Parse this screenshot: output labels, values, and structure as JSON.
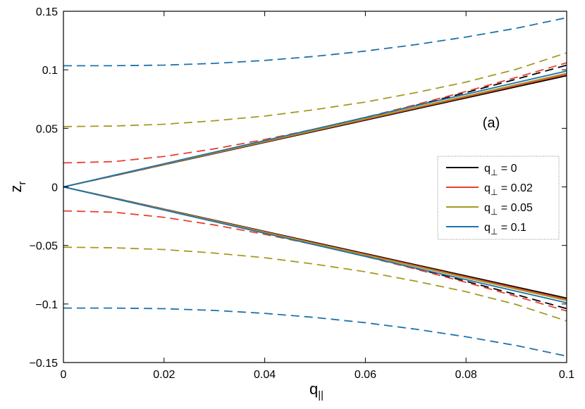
{
  "chart_data": {
    "type": "line",
    "xlabel": "q",
    "xlabel_sub": "||",
    "ylabel": "z",
    "ylabel_sub": "r",
    "xlim": [
      0,
      0.1
    ],
    "ylim": [
      -0.15,
      0.15
    ],
    "x_ticks": [
      0,
      0.02,
      0.04,
      0.06,
      0.08,
      0.1
    ],
    "x_tick_labels": [
      "0",
      "0.02",
      "0.04",
      "0.06",
      "0.08",
      "0.1"
    ],
    "y_ticks": [
      -0.15,
      -0.1,
      -0.05,
      0,
      0.05,
      0.1,
      0.15
    ],
    "y_tick_labels": [
      "−0.15",
      "−0.1",
      "−0.05",
      "0",
      "0.05",
      "0.1",
      "0.15"
    ],
    "grid": false,
    "legend_position": "right",
    "annotation": "(a)",
    "x": [
      0,
      0.01,
      0.02,
      0.03,
      0.04,
      0.05,
      0.06,
      0.07,
      0.08,
      0.09,
      0.1
    ],
    "series": [
      {
        "name": "q⊥ = 0",
        "legend_label": "q",
        "legend_sub": "⊥",
        "legend_value": " = 0",
        "color": "#000000",
        "solid_upper": [
          0,
          0.0095,
          0.019,
          0.0285,
          0.038,
          0.0475,
          0.057,
          0.0665,
          0.076,
          0.0855,
          0.095
        ],
        "solid_lower": [
          0,
          -0.0095,
          -0.019,
          -0.0285,
          -0.038,
          -0.0475,
          -0.057,
          -0.0665,
          -0.076,
          -0.0855,
          -0.095
        ],
        "dashed_upper": [
          0,
          0.0095,
          0.019,
          0.0287,
          0.0386,
          0.0487,
          0.059,
          0.0696,
          0.0806,
          0.092,
          0.104
        ],
        "dashed_lower": [
          0,
          -0.0095,
          -0.019,
          -0.0287,
          -0.0386,
          -0.0487,
          -0.059,
          -0.0696,
          -0.0806,
          -0.092,
          -0.104
        ]
      },
      {
        "name": "q⊥ = 0.02",
        "legend_label": "q",
        "legend_sub": "⊥",
        "legend_value": " = 0.02",
        "color": "#e8412c",
        "solid_upper": [
          0,
          0.0096,
          0.0192,
          0.0288,
          0.0384,
          0.048,
          0.0576,
          0.0672,
          0.0768,
          0.0864,
          0.096
        ],
        "solid_lower": [
          0,
          -0.0096,
          -0.0192,
          -0.0288,
          -0.0384,
          -0.048,
          -0.0576,
          -0.0672,
          -0.0768,
          -0.0864,
          -0.096
        ],
        "dashed_upper": [
          0.0205,
          0.0216,
          0.026,
          0.0325,
          0.0405,
          0.0494,
          0.0594,
          0.0702,
          0.0815,
          0.0935,
          0.106
        ],
        "dashed_lower": [
          -0.0205,
          -0.0216,
          -0.026,
          -0.0325,
          -0.0405,
          -0.0494,
          -0.0594,
          -0.0702,
          -0.0815,
          -0.0935,
          -0.106
        ]
      },
      {
        "name": "q⊥ = 0.05",
        "legend_label": "q",
        "legend_sub": "⊥",
        "legend_value": " = 0.05",
        "color": "#a59a21",
        "solid_upper": [
          0,
          0.0097,
          0.0194,
          0.0291,
          0.0388,
          0.0485,
          0.0582,
          0.0679,
          0.0776,
          0.0873,
          0.097
        ],
        "solid_lower": [
          0,
          -0.0097,
          -0.0194,
          -0.0291,
          -0.0388,
          -0.0485,
          -0.0582,
          -0.0679,
          -0.0776,
          -0.0873,
          -0.097
        ],
        "dashed_upper": [
          0.0515,
          0.052,
          0.0535,
          0.0565,
          0.0605,
          0.066,
          0.0725,
          0.0805,
          0.0895,
          0.1005,
          0.1145
        ],
        "dashed_lower": [
          -0.0515,
          -0.052,
          -0.0535,
          -0.0565,
          -0.0605,
          -0.066,
          -0.0725,
          -0.0805,
          -0.0895,
          -0.1005,
          -0.1145
        ]
      },
      {
        "name": "q⊥ = 0.1",
        "legend_label": "q",
        "legend_sub": "⊥",
        "legend_value": " = 0.1",
        "color": "#1e72ad",
        "solid_upper": [
          0,
          0.0099,
          0.0198,
          0.0297,
          0.0396,
          0.0495,
          0.0594,
          0.0693,
          0.0792,
          0.0891,
          0.099
        ],
        "solid_lower": [
          0,
          -0.0099,
          -0.0198,
          -0.0297,
          -0.0396,
          -0.0495,
          -0.0594,
          -0.0693,
          -0.0792,
          -0.0891,
          -0.099
        ],
        "dashed_upper": [
          0.1035,
          0.1035,
          0.104,
          0.1055,
          0.108,
          0.1115,
          0.116,
          0.1215,
          0.128,
          0.1355,
          0.1445
        ],
        "dashed_lower": [
          -0.1035,
          -0.1035,
          -0.104,
          -0.1055,
          -0.108,
          -0.1115,
          -0.116,
          -0.1215,
          -0.128,
          -0.1355,
          -0.1445
        ]
      }
    ]
  }
}
